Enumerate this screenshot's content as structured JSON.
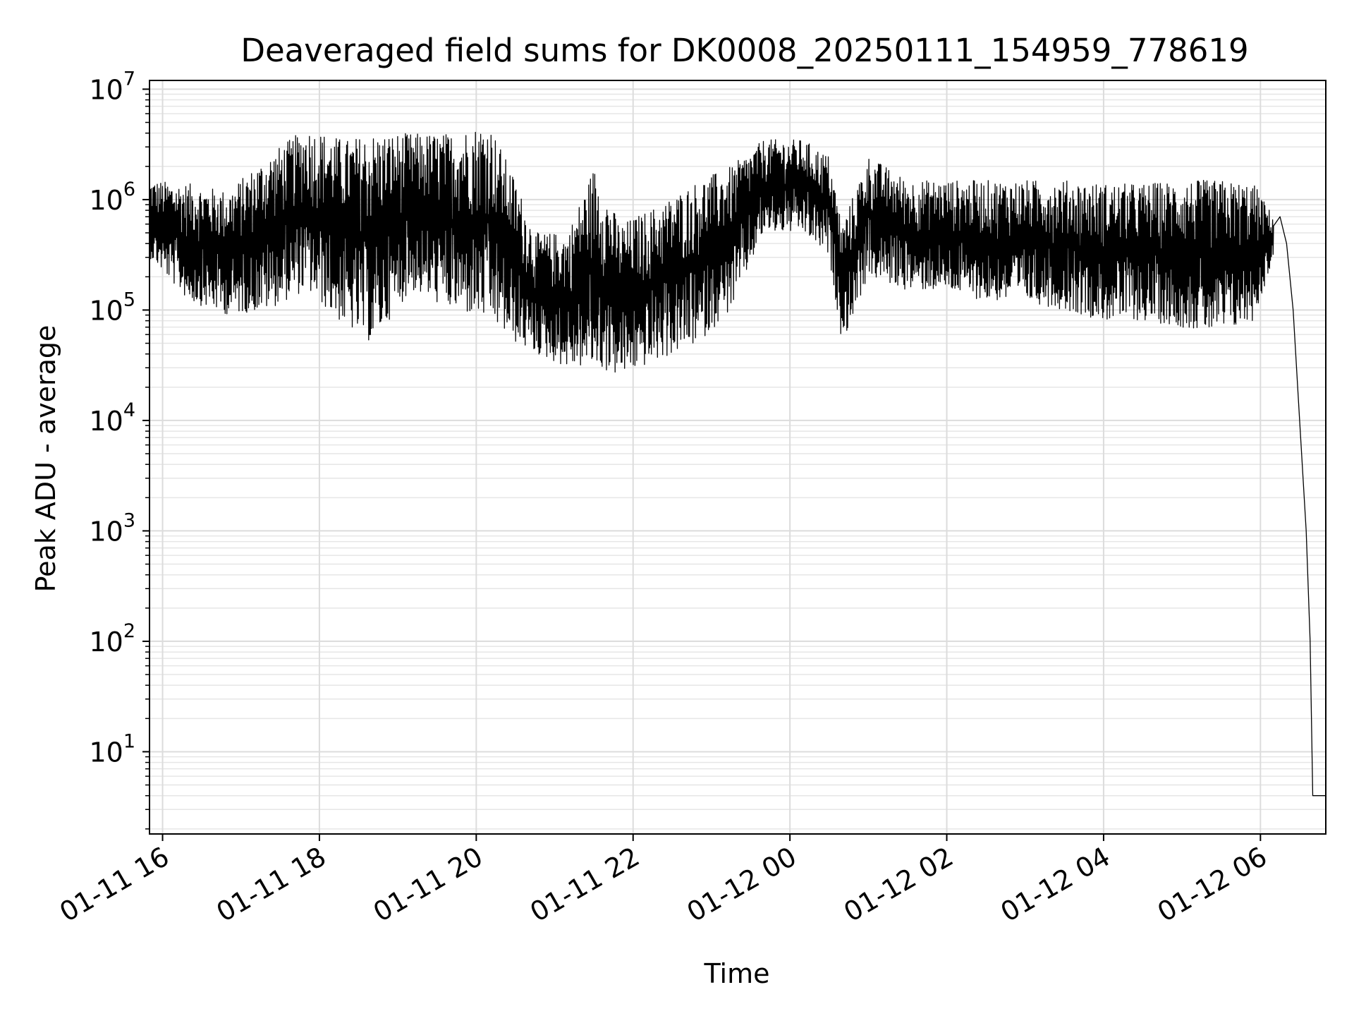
{
  "chart_data": {
    "type": "line",
    "title": "Deaveraged field sums for DK0008_20250111_154959_778619",
    "xlabel": "Time",
    "ylabel": "Peak ADU - average",
    "yscale": "log",
    "ylim": [
      1.8,
      12000000
    ],
    "xlim": [
      "2025-01-11 15:50",
      "2025-01-12 06:50"
    ],
    "grid": true,
    "line_color": "#000000",
    "x_ticks": [
      {
        "t": "2025-01-11 16:00",
        "label": "01-11 16"
      },
      {
        "t": "2025-01-11 18:00",
        "label": "01-11 18"
      },
      {
        "t": "2025-01-11 20:00",
        "label": "01-11 20"
      },
      {
        "t": "2025-01-11 22:00",
        "label": "01-11 22"
      },
      {
        "t": "2025-01-12 00:00",
        "label": "01-12 00"
      },
      {
        "t": "2025-01-12 02:00",
        "label": "01-12 02"
      },
      {
        "t": "2025-01-12 04:00",
        "label": "01-12 04"
      },
      {
        "t": "2025-01-12 06:00",
        "label": "01-12 06"
      }
    ],
    "y_ticks": [
      {
        "value": 10,
        "base": "10",
        "exp": "1"
      },
      {
        "value": 100,
        "base": "10",
        "exp": "2"
      },
      {
        "value": 1000,
        "base": "10",
        "exp": "3"
      },
      {
        "value": 10000,
        "base": "10",
        "exp": "4"
      },
      {
        "value": 100000,
        "base": "10",
        "exp": "5"
      },
      {
        "value": 1000000,
        "base": "10",
        "exp": "6"
      },
      {
        "value": 10000000,
        "base": "10",
        "exp": "7"
      }
    ],
    "series": [
      {
        "style": "noisy envelope: each point is a low/high pair, drawn as a dense oscillating line",
        "points": [
          {
            "t": "2025-01-11 15:50",
            "low": 300000,
            "high": 1500000
          },
          {
            "t": "2025-01-11 16:20",
            "low": 120000,
            "high": 1400000
          },
          {
            "t": "2025-01-11 16:50",
            "low": 90000,
            "high": 1200000
          },
          {
            "t": "2025-01-11 17:20",
            "low": 100000,
            "high": 2500000
          },
          {
            "t": "2025-01-11 17:50",
            "low": 150000,
            "high": 4500000
          },
          {
            "t": "2025-01-11 18:20",
            "low": 70000,
            "high": 3500000
          },
          {
            "t": "2025-01-11 18:40",
            "low": 50000,
            "high": 4000000
          },
          {
            "t": "2025-01-11 19:10",
            "low": 150000,
            "high": 4000000
          },
          {
            "t": "2025-01-11 19:40",
            "low": 100000,
            "high": 4000000
          },
          {
            "t": "2025-01-11 20:10",
            "low": 80000,
            "high": 5000000
          },
          {
            "t": "2025-01-11 20:30",
            "low": 50000,
            "high": 1500000
          },
          {
            "t": "2025-01-11 20:45",
            "low": 40000,
            "high": 500000
          },
          {
            "t": "2025-01-11 21:10",
            "low": 30000,
            "high": 500000
          },
          {
            "t": "2025-01-11 21:30",
            "low": 30000,
            "high": 2000000
          },
          {
            "t": "2025-01-11 21:50",
            "low": 25000,
            "high": 600000
          },
          {
            "t": "2025-01-11 22:20",
            "low": 35000,
            "high": 900000
          },
          {
            "t": "2025-01-11 22:50",
            "low": 50000,
            "high": 1500000
          },
          {
            "t": "2025-01-11 23:15",
            "low": 100000,
            "high": 2000000
          },
          {
            "t": "2025-01-11 23:40",
            "low": 500000,
            "high": 3500000
          },
          {
            "t": "2025-01-12 00:10",
            "low": 500000,
            "high": 3500000
          },
          {
            "t": "2025-01-12 00:30",
            "low": 300000,
            "high": 2500000
          },
          {
            "t": "2025-01-12 00:40",
            "low": 50000,
            "high": 600000
          },
          {
            "t": "2025-01-12 01:00",
            "low": 200000,
            "high": 2500000
          },
          {
            "t": "2025-01-12 01:30",
            "low": 150000,
            "high": 1500000
          },
          {
            "t": "2025-01-12 02:00",
            "low": 150000,
            "high": 1500000
          },
          {
            "t": "2025-01-12 02:30",
            "low": 120000,
            "high": 1500000
          },
          {
            "t": "2025-01-12 03:00",
            "low": 120000,
            "high": 1500000
          },
          {
            "t": "2025-01-12 03:30",
            "low": 100000,
            "high": 1500000
          },
          {
            "t": "2025-01-12 04:00",
            "low": 80000,
            "high": 1400000
          },
          {
            "t": "2025-01-12 04:30",
            "low": 80000,
            "high": 1400000
          },
          {
            "t": "2025-01-12 05:00",
            "low": 70000,
            "high": 1500000
          },
          {
            "t": "2025-01-12 05:30",
            "low": 60000,
            "high": 1500000
          },
          {
            "t": "2025-01-12 05:55",
            "low": 80000,
            "high": 1400000
          },
          {
            "t": "2025-01-12 06:10",
            "low": 300000,
            "high": 700000
          }
        ],
        "tail": [
          {
            "t": "2025-01-12 06:15",
            "value": 700000
          },
          {
            "t": "2025-01-12 06:20",
            "value": 400000
          },
          {
            "t": "2025-01-12 06:25",
            "value": 100000
          },
          {
            "t": "2025-01-12 06:30",
            "value": 10000
          },
          {
            "t": "2025-01-12 06:35",
            "value": 1000
          },
          {
            "t": "2025-01-12 06:38",
            "value": 100
          },
          {
            "t": "2025-01-12 06:40",
            "value": 4
          },
          {
            "t": "2025-01-12 06:50",
            "value": 4
          }
        ]
      }
    ]
  }
}
